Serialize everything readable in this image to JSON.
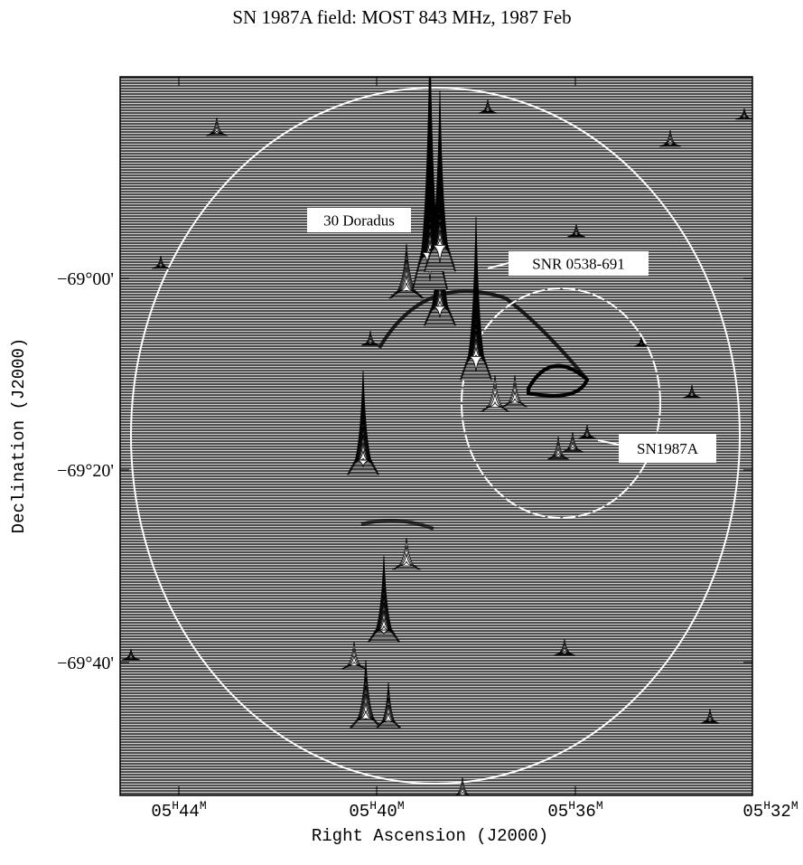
{
  "header": {
    "title": "SN 1987A field: MOST 843 MHz, 1987 Feb"
  },
  "axes": {
    "x_label": "Right Ascension (J2000)",
    "y_label": "Declination (J2000)",
    "x_ticks": [
      [
        "05",
        "H",
        "44",
        "M"
      ],
      [
        "05",
        "H",
        "40",
        "M"
      ],
      [
        "05",
        "H",
        "36",
        "M"
      ],
      [
        "05",
        "H",
        "32",
        "M"
      ]
    ],
    "y_ticks": [
      "−69°00'",
      "−69°20'",
      "−69°40'"
    ]
  },
  "annotations": [
    "30 Doradus",
    "SNR 0538-691",
    "SN1987A"
  ]
}
